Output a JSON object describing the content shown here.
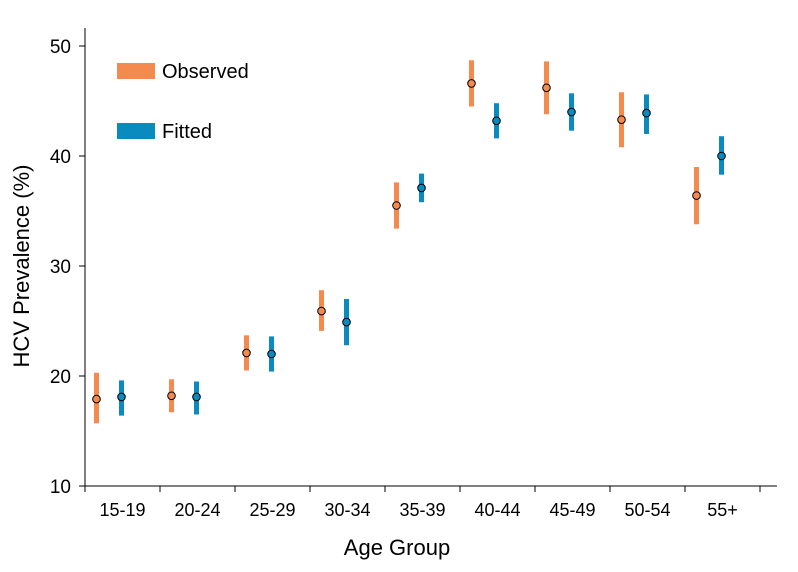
{
  "chart_data": {
    "type": "errorbar",
    "xlabel": "Age Group",
    "ylabel": "HCV Prevalence (%)",
    "ylim": [
      10,
      50
    ],
    "yticks": [
      10,
      20,
      30,
      40,
      50
    ],
    "grid": false,
    "legend_position": "top-left",
    "categories": [
      "15-19",
      "20-24",
      "25-29",
      "30-34",
      "35-39",
      "40-44",
      "45-49",
      "50-54",
      "55+"
    ],
    "series": [
      {
        "name": "Observed",
        "color": "#f58a4f",
        "values": [
          17.9,
          18.2,
          22.1,
          25.9,
          35.5,
          46.6,
          46.2,
          43.3,
          36.4
        ],
        "lower": [
          15.7,
          16.7,
          20.5,
          24.1,
          33.4,
          44.5,
          43.8,
          40.8,
          33.8
        ],
        "upper": [
          20.3,
          19.7,
          23.7,
          27.8,
          37.6,
          48.7,
          48.6,
          45.8,
          39.0
        ]
      },
      {
        "name": "Fitted",
        "color": "#0a8bc0",
        "values": [
          18.1,
          18.1,
          22.0,
          24.9,
          37.1,
          43.2,
          44.0,
          43.9,
          40.0
        ],
        "lower": [
          16.4,
          16.5,
          20.4,
          22.8,
          35.8,
          41.6,
          42.3,
          42.0,
          38.3
        ],
        "upper": [
          19.6,
          19.5,
          23.6,
          27.0,
          38.4,
          44.8,
          45.7,
          45.6,
          41.8
        ]
      }
    ]
  }
}
